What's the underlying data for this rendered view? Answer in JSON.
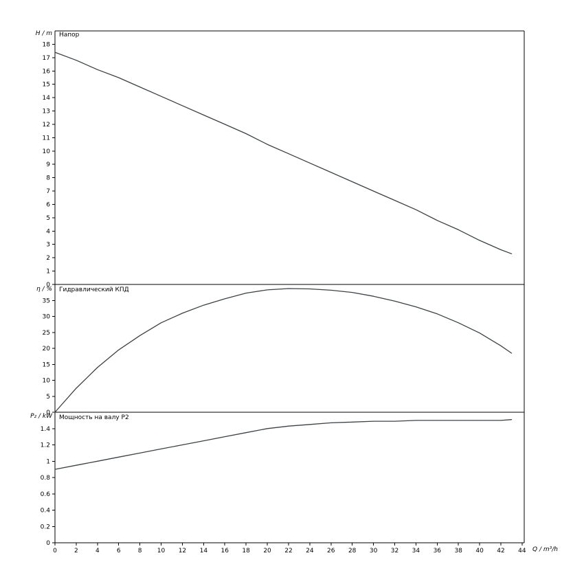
{
  "figure": {
    "background": "#ffffff",
    "axis_color": "#000000",
    "curve_color": "#3c4043",
    "xlabel": "Q / m³/h",
    "x_ticks": [
      0,
      2,
      4,
      6,
      8,
      10,
      12,
      14,
      16,
      18,
      20,
      22,
      24,
      26,
      28,
      30,
      32,
      34,
      36,
      38,
      40,
      42,
      44
    ],
    "x_range": [
      0,
      44.2
    ],
    "grid": false,
    "legend": "none"
  },
  "chart_data": [
    {
      "type": "line",
      "title": "Напор",
      "ylabel": "H / m",
      "ylim": [
        0,
        19
      ],
      "yticks": [
        0,
        1,
        2,
        3,
        4,
        5,
        6,
        7,
        8,
        9,
        10,
        11,
        12,
        13,
        14,
        15,
        16,
        17,
        18
      ],
      "x": [
        0,
        2,
        4,
        6,
        8,
        10,
        12,
        14,
        16,
        18,
        20,
        22,
        24,
        26,
        28,
        30,
        32,
        34,
        36,
        38,
        40,
        42,
        43
      ],
      "y": [
        17.4,
        16.8,
        16.1,
        15.5,
        14.8,
        14.1,
        13.4,
        12.7,
        12.0,
        11.3,
        10.5,
        9.8,
        9.1,
        8.4,
        7.7,
        7.0,
        6.3,
        5.6,
        4.8,
        4.1,
        3.3,
        2.6,
        2.3
      ]
    },
    {
      "type": "line",
      "title": "Гидравлический КПД",
      "ylabel": "η / %",
      "ylim": [
        0,
        40
      ],
      "yticks": [
        0,
        5,
        10,
        15,
        20,
        25,
        30,
        35
      ],
      "x": [
        0,
        2,
        4,
        6,
        8,
        10,
        12,
        14,
        16,
        18,
        20,
        22,
        24,
        26,
        28,
        30,
        32,
        34,
        36,
        38,
        40,
        42,
        43
      ],
      "y": [
        0,
        7.5,
        14,
        19.5,
        24,
        28,
        31,
        33.5,
        35.5,
        37.3,
        38.3,
        38.7,
        38.6,
        38.2,
        37.5,
        36.3,
        34.8,
        33,
        30.8,
        28,
        24.8,
        20.8,
        18.5
      ]
    },
    {
      "type": "line",
      "title": "Мощность на валу P2",
      "ylabel": "P₂ / kW",
      "ylim": [
        0,
        1.6
      ],
      "yticks": [
        0,
        0.2,
        0.4,
        0.6,
        0.8,
        1,
        1.2,
        1.4
      ],
      "x": [
        0,
        2,
        4,
        6,
        8,
        10,
        12,
        14,
        16,
        18,
        20,
        22,
        24,
        26,
        28,
        30,
        32,
        34,
        36,
        38,
        40,
        42,
        43
      ],
      "y": [
        0.9,
        0.95,
        1.0,
        1.05,
        1.1,
        1.15,
        1.2,
        1.25,
        1.3,
        1.35,
        1.4,
        1.43,
        1.45,
        1.47,
        1.48,
        1.49,
        1.49,
        1.5,
        1.5,
        1.5,
        1.5,
        1.5,
        1.51
      ]
    }
  ]
}
